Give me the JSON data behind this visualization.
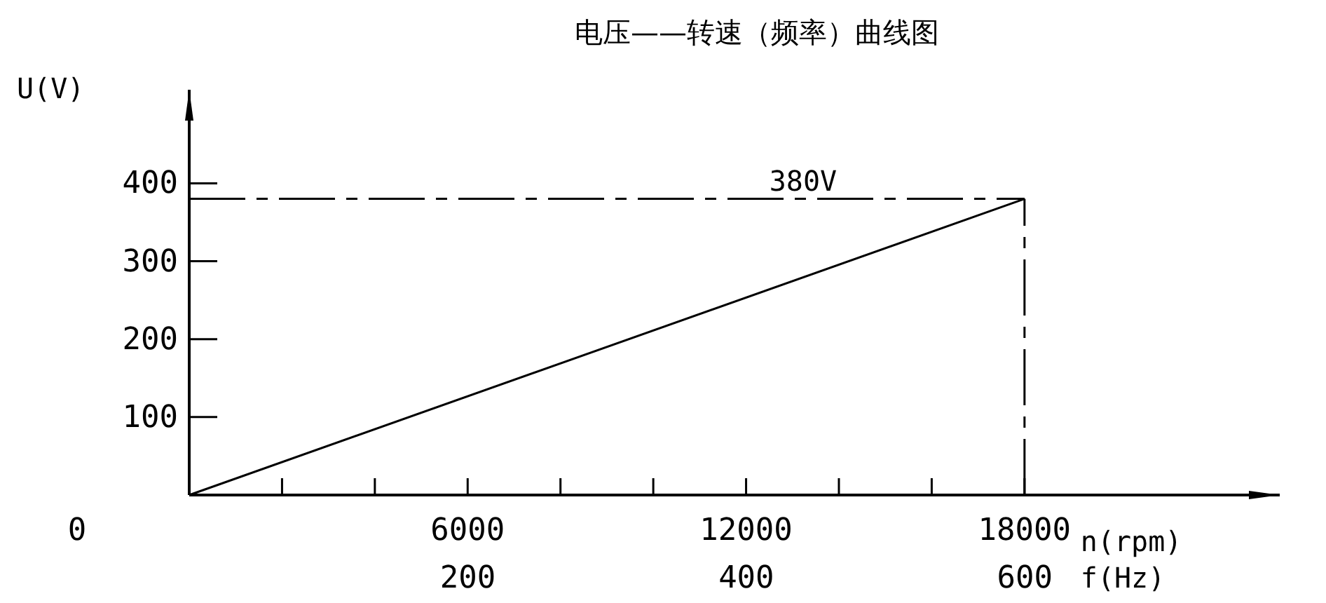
{
  "chart_data": {
    "type": "line",
    "title": "电压——转速（频率）曲线图",
    "xlabel": "n(rpm)",
    "x2label": "f(Hz)",
    "ylabel": "U(V)",
    "x": [
      0,
      18000
    ],
    "series": [
      {
        "color": "#000000",
        "values": [
          0,
          380
        ]
      }
    ],
    "xlim": [
      0,
      23500
    ],
    "annotations": [
      "0"
    ],
    "xticks": [
      {
        "value": 2000,
        "label": null
      },
      {
        "value": 4000,
        "label": null
      },
      6000,
      {
        "value": 8000,
        "label": null
      },
      {
        "value": 10000,
        "label": null
      },
      12000,
      {
        "value": 14000,
        "label": null
      },
      {
        "value": 16000,
        "label": null
      },
      18000
    ],
    "x2lim": [
      0,
      783
    ],
    "x2ticks": [
      200,
      400,
      600
    ],
    "ylim": [
      0,
      520
    ],
    "yticks": [
      100,
      200,
      300,
      400
    ],
    "ref_lines": [
      {
        "axis": "y",
        "value": 380,
        "label": "380V",
        "line_style": "dashed",
        "color": "#000000"
      },
      {
        "axis": "x",
        "value": 18000,
        "line_style": "dashed",
        "color": "#000000"
      }
    ],
    "grid": false
  }
}
